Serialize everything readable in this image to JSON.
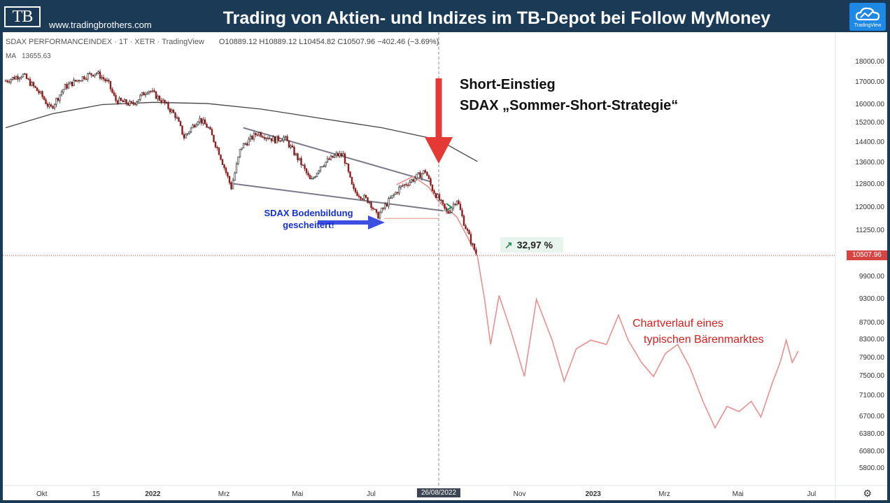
{
  "banner": {
    "logo": "TB",
    "url": "www.tradingbrothers.com",
    "title": "Trading von Aktien- und Indizes im TB-Depot bei Follow MyMoney",
    "badge": "TradingView"
  },
  "header": {
    "symbol": "SDAX PERFORMANCEINDEX · 1T · XETR · TradingView",
    "ohlc": "O10889.12 H10889.12 L10454.82 C10507.96 −402.46 (−3.69%)",
    "ma_label": "MA",
    "ma_value": "13655.63"
  },
  "annotations": {
    "short_line1": "Short-Einstieg",
    "short_line2": "SDAX „Sommer-Short-Strategie“",
    "boden_line1": "SDAX Bodenbildung",
    "boden_line2": "gescheitert!",
    "bear_line1": "Chartverlauf eines",
    "bear_line2": "typischen Bärenmarktes",
    "pct": "32,97 %"
  },
  "last_price": "10507.96",
  "highlight_date": "26/08/2022",
  "colors": {
    "banner": "#1b3a56",
    "candle_up": "#222222",
    "candle_down": "#8b1a1a",
    "projection": "#e89090",
    "arrow_red": "#e53935",
    "arrow_blue": "#3d4fe0",
    "trendline": "#7a7a88",
    "ma": "#444444"
  },
  "chart_data": {
    "type": "line",
    "title": "SDAX PERFORMANCEINDEX · 1T · XETR · TradingView",
    "y_scale": "log",
    "ylim": [
      5600,
      19200
    ],
    "y_ticks": [
      "18000.00",
      "17000.00",
      "16000.00",
      "15200.00",
      "14400.00",
      "13600.00",
      "12800.00",
      "12000.00",
      "11250.00",
      "10507.96",
      "9900.00",
      "9300.00",
      "8700.00",
      "8300.00",
      "7900.00",
      "7500.00",
      "7100.00",
      "6700.00",
      "6380.00",
      "6080.00",
      "5800.00"
    ],
    "x_ticks": [
      "Okt",
      "15",
      "2022",
      "Mrz",
      "Mai",
      "Jul",
      "26/08/2022",
      "Nov",
      "2023",
      "Mrz",
      "Mai",
      "Jul"
    ],
    "series": [
      {
        "name": "SDAX PERFORMANCEINDEX",
        "kind": "candle-close",
        "points": [
          [
            "2021-09-01",
            17100
          ],
          [
            "2021-09-15",
            17400
          ],
          [
            "2021-10-01",
            16400
          ],
          [
            "2021-10-08",
            15800
          ],
          [
            "2021-10-20",
            16800
          ],
          [
            "2021-11-05",
            17300
          ],
          [
            "2021-11-15",
            17500
          ],
          [
            "2021-11-25",
            17000
          ],
          [
            "2021-12-01",
            16200
          ],
          [
            "2021-12-15",
            16000
          ],
          [
            "2021-12-28",
            16700
          ],
          [
            "2022-01-10",
            16100
          ],
          [
            "2022-01-20",
            15500
          ],
          [
            "2022-01-27",
            14600
          ],
          [
            "2022-02-08",
            15400
          ],
          [
            "2022-02-16",
            15000
          ],
          [
            "2022-02-25",
            14000
          ],
          [
            "2022-03-07",
            12700
          ],
          [
            "2022-03-15",
            14200
          ],
          [
            "2022-03-29",
            14800
          ],
          [
            "2022-04-12",
            14500
          ],
          [
            "2022-04-20",
            14600
          ],
          [
            "2022-05-05",
            13500
          ],
          [
            "2022-05-12",
            12900
          ],
          [
            "2022-05-20",
            13500
          ],
          [
            "2022-06-02",
            13900
          ],
          [
            "2022-06-08",
            13900
          ],
          [
            "2022-06-16",
            12600
          ],
          [
            "2022-06-30",
            12200
          ],
          [
            "2022-07-06",
            11700
          ],
          [
            "2022-07-15",
            12200
          ],
          [
            "2022-07-25",
            12700
          ],
          [
            "2022-08-05",
            13000
          ],
          [
            "2022-08-15",
            13300
          ],
          [
            "2022-08-20",
            12700
          ],
          [
            "2022-08-26",
            12300
          ],
          [
            "2022-09-02",
            11800
          ],
          [
            "2022-09-10",
            12300
          ],
          [
            "2022-09-16",
            11500
          ],
          [
            "2022-09-23",
            10800
          ],
          [
            "2022-09-27",
            10508
          ]
        ]
      },
      {
        "name": "MA",
        "kind": "moving-average",
        "points": [
          [
            "2021-09-01",
            15000
          ],
          [
            "2021-10-10",
            15600
          ],
          [
            "2021-11-20",
            16000
          ],
          [
            "2022-01-01",
            16100
          ],
          [
            "2022-02-15",
            16050
          ],
          [
            "2022-04-01",
            15800
          ],
          [
            "2022-05-20",
            15400
          ],
          [
            "2022-07-10",
            15000
          ],
          [
            "2022-08-26",
            14500
          ],
          [
            "2022-09-27",
            13656
          ]
        ]
      },
      {
        "name": "Chartverlauf eines typischen Bärenmarktes",
        "kind": "projection",
        "points": [
          [
            "2022-07-22",
            12800
          ],
          [
            "2022-08-05",
            13100
          ],
          [
            "2022-08-18",
            12700
          ],
          [
            "2022-08-26",
            12200
          ],
          [
            "2022-09-10",
            11700
          ],
          [
            "2022-09-27",
            10500
          ],
          [
            "2022-10-03",
            9300
          ],
          [
            "2022-10-08",
            8200
          ],
          [
            "2022-10-15",
            9400
          ],
          [
            "2022-10-25",
            8500
          ],
          [
            "2022-11-05",
            7500
          ],
          [
            "2022-11-15",
            9300
          ],
          [
            "2022-11-28",
            8300
          ],
          [
            "2022-12-08",
            7400
          ],
          [
            "2022-12-18",
            8100
          ],
          [
            "2022-12-30",
            8300
          ],
          [
            "2023-01-12",
            8200
          ],
          [
            "2023-01-22",
            8900
          ],
          [
            "2023-01-30",
            8300
          ],
          [
            "2023-02-10",
            7800
          ],
          [
            "2023-02-20",
            7500
          ],
          [
            "2023-03-02",
            8000
          ],
          [
            "2023-03-12",
            8200
          ],
          [
            "2023-03-22",
            7700
          ],
          [
            "2023-04-02",
            7000
          ],
          [
            "2023-04-12",
            6500
          ],
          [
            "2023-04-22",
            6900
          ],
          [
            "2023-05-02",
            6800
          ],
          [
            "2023-05-12",
            7000
          ],
          [
            "2023-05-20",
            6700
          ],
          [
            "2023-05-30",
            7400
          ],
          [
            "2023-06-05",
            7800
          ],
          [
            "2023-06-10",
            8300
          ],
          [
            "2023-06-15",
            7800
          ],
          [
            "2023-06-20",
            8050
          ]
        ]
      }
    ],
    "trendlines": [
      [
        [
          "2022-03-17",
          15000
        ],
        [
          "2022-08-20",
          12900
        ]
      ],
      [
        [
          "2022-03-06",
          12850
        ],
        [
          "2022-08-30",
          11900
        ]
      ]
    ],
    "support_line": [
      [
        "2022-07-12",
        11650
      ],
      [
        "2022-08-26",
        11650
      ]
    ],
    "vertical_marker": "2022-08-26",
    "horizontal_marker": 10507.96
  }
}
